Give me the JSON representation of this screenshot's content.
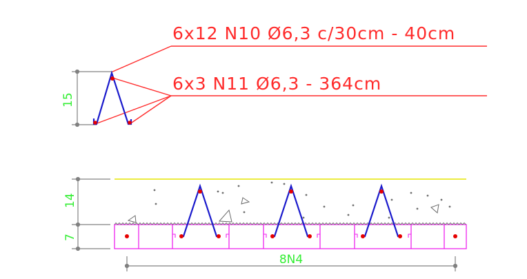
{
  "annotations": {
    "rebar_top": "6x12 N10 Ø6,3 c/30cm - 40cm",
    "rebar_bottom": "6x3 N11 Ø6,3 - 364cm"
  },
  "dimensions": {
    "detail_height": "15",
    "topping_height": "14",
    "slab_height": "7",
    "bottom_bars": "8N4"
  },
  "colors": {
    "leader": "#ff2a2a",
    "truss": "#1a1acc",
    "dimension": "#808080",
    "dimension_text": "#33ee33",
    "slab_outline": "#ee22ee",
    "topping_edge": "#e6e600",
    "rebar_dot": "#e60000"
  }
}
